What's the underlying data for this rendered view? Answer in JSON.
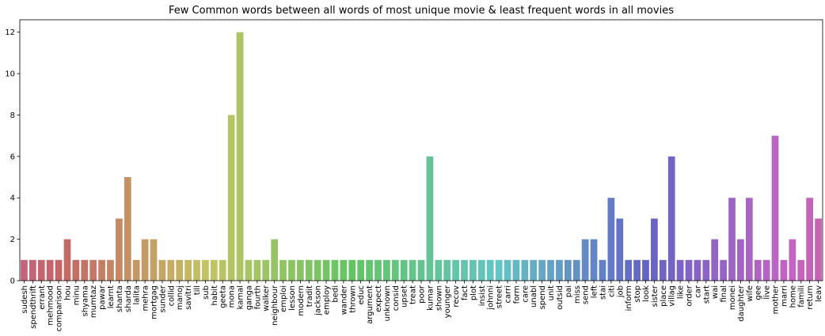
{
  "chart_data": {
    "type": "bar",
    "title": "Few Common words between all words of most unique movie & least frequent words in all movies",
    "xlabel": "",
    "ylabel": "",
    "ylim": [
      0,
      12.6
    ],
    "yticks": [
      0,
      2,
      4,
      6,
      8,
      10,
      12
    ],
    "grid": false,
    "palette": "husl (seaborn default, pink → olive → green → teal → blue → purple → pink)",
    "categories": [
      "sudesh",
      "spendthrift",
      "errant",
      "mehmood",
      "comparison",
      "hou",
      "minu",
      "shyama",
      "mumtaz",
      "pawar",
      "learnt",
      "shanta",
      "sharda",
      "lalita",
      "mehra",
      "mortgag",
      "sunder",
      "collid",
      "manoj",
      "savitri",
      "till",
      "sub",
      "habit",
      "geeta",
      "mona",
      "kamal",
      "ganga",
      "fourth",
      "walker",
      "neighbour",
      "emploi",
      "lesson",
      "modern",
      "tradit",
      "jackson",
      "employ",
      "bedi",
      "wander",
      "thrown",
      "educ",
      "argument",
      "expect",
      "unknown",
      "consid",
      "upset",
      "treat",
      "poor",
      "kumar",
      "shown",
      "younger",
      "recov",
      "fact",
      "plot",
      "insist",
      "johnni",
      "street",
      "carri",
      "form",
      "care",
      "unabl",
      "spend",
      "unit",
      "outsid",
      "pai",
      "miss",
      "send",
      "left",
      "stai",
      "citi",
      "job",
      "inform",
      "stop",
      "look",
      "sister",
      "place",
      "villag",
      "like",
      "order",
      "car",
      "start",
      "wai",
      "final",
      "monei",
      "daughter",
      "wife",
      "gee",
      "live",
      "mother",
      "marri",
      "home",
      "famili",
      "return",
      "leav"
    ],
    "values": [
      1,
      1,
      1,
      1,
      1,
      2,
      1,
      1,
      1,
      1,
      1,
      3,
      5,
      1,
      2,
      2,
      1,
      1,
      1,
      1,
      1,
      1,
      1,
      1,
      8,
      12,
      1,
      1,
      1,
      2,
      1,
      1,
      1,
      1,
      1,
      1,
      1,
      1,
      1,
      1,
      1,
      1,
      1,
      1,
      1,
      1,
      1,
      6,
      1,
      1,
      1,
      1,
      1,
      1,
      1,
      1,
      1,
      1,
      1,
      1,
      1,
      1,
      1,
      1,
      1,
      2,
      2,
      1,
      4,
      3,
      1,
      1,
      1,
      3,
      1,
      6,
      1,
      1,
      1,
      1,
      2,
      1,
      4,
      2,
      4,
      1,
      1,
      7,
      1,
      2,
      1,
      4,
      3
    ]
  }
}
